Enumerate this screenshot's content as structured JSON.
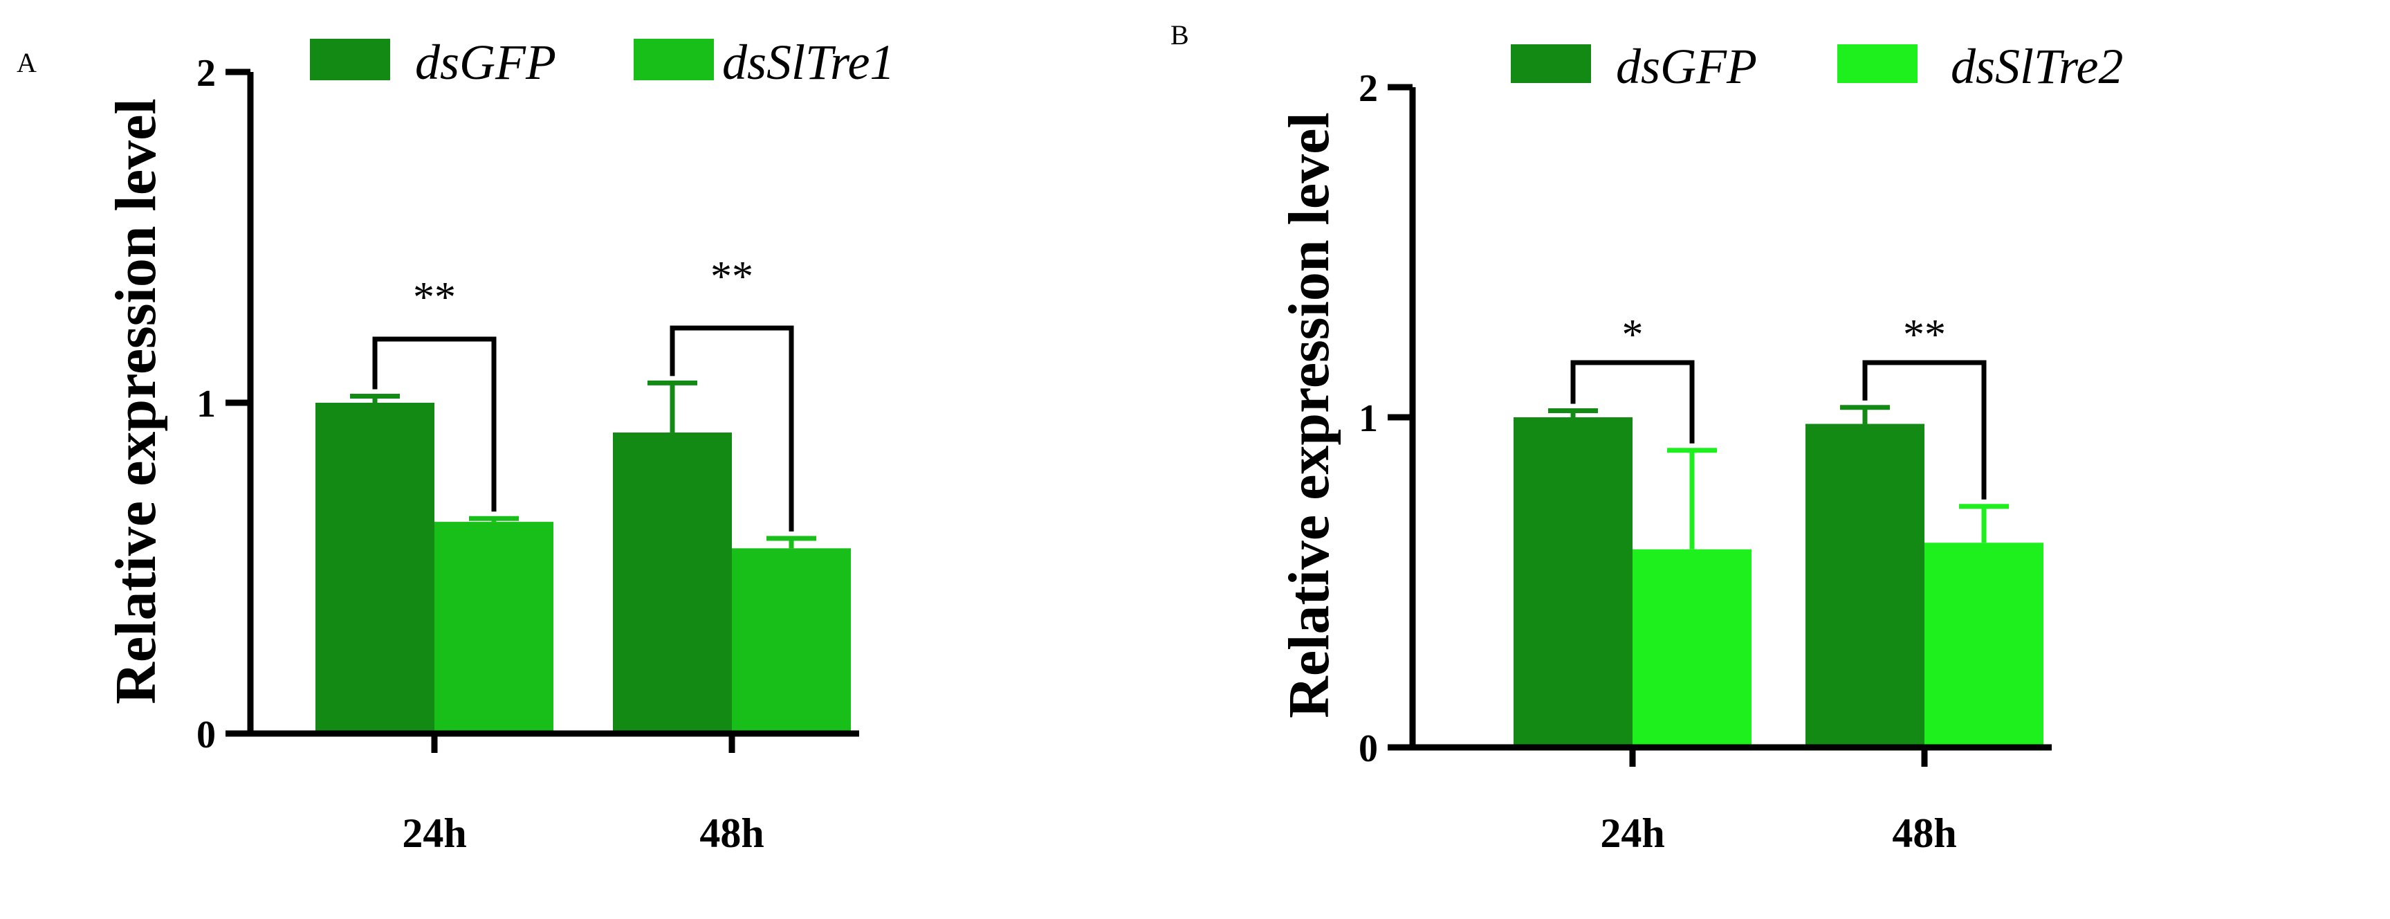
{
  "chart_data": [
    {
      "panel_label": "A",
      "type": "bar",
      "categories": [
        "24h",
        "48h"
      ],
      "series": [
        {
          "name": "dsGFP",
          "values": [
            1.0,
            0.91
          ],
          "errors": [
            0.02,
            0.15
          ],
          "color": "#138a13"
        },
        {
          "name": "dsSlTre1",
          "values": [
            0.64,
            0.56
          ],
          "errors": [
            0.01,
            0.03
          ],
          "color": "#19bf19"
        }
      ],
      "ylabel": "Relative expression level",
      "ylim": [
        0,
        2
      ],
      "yticks": [
        0,
        1,
        2
      ],
      "ytick_labels": [
        "0",
        "1",
        "2"
      ],
      "legend_position": "top",
      "significance": [
        {
          "category": "24h",
          "label": "**"
        },
        {
          "category": "48h",
          "label": "**"
        }
      ]
    },
    {
      "panel_label": "B",
      "type": "bar",
      "categories": [
        "24h",
        "48h"
      ],
      "series": [
        {
          "name": "dsGFP",
          "values": [
            1.0,
            0.98
          ],
          "errors": [
            0.02,
            0.05
          ],
          "color": "#138a13"
        },
        {
          "name": "dsSlTre2",
          "values": [
            0.6,
            0.62
          ],
          "errors": [
            0.3,
            0.11
          ],
          "color": "#1df01d"
        }
      ],
      "ylabel": "Relative expression level",
      "ylim": [
        0,
        2
      ],
      "yticks": [
        0,
        1,
        2
      ],
      "ytick_labels": [
        "0",
        "1",
        "2"
      ],
      "legend_position": "top",
      "significance": [
        {
          "category": "24h",
          "label": "*"
        },
        {
          "category": "48h",
          "label": "**"
        }
      ]
    }
  ]
}
